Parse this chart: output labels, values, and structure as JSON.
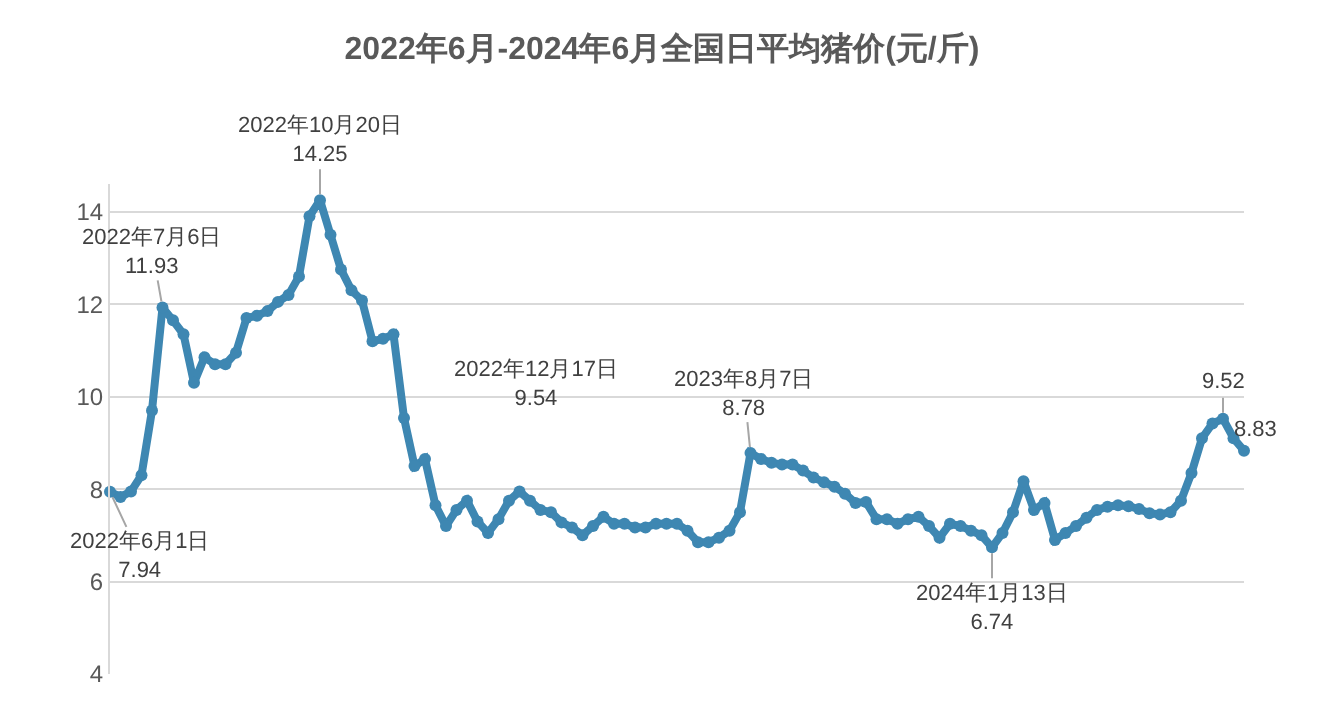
{
  "chart_data": {
    "type": "line",
    "title": "2022年6月-2024年6月全国日平均猪价(元/斤)",
    "categories": [
      null,
      null,
      null,
      null,
      null,
      null,
      null,
      null,
      null,
      null,
      null,
      null,
      null,
      null,
      null,
      null,
      null,
      null,
      null,
      null,
      null,
      null,
      null,
      null,
      null,
      null,
      null,
      null,
      null,
      null,
      null,
      null,
      null,
      null,
      null,
      null,
      null,
      null,
      null,
      null,
      null,
      null,
      null,
      null,
      null,
      null,
      null,
      null,
      null,
      null,
      null,
      null,
      null,
      null,
      null,
      null,
      null,
      null,
      null,
      null,
      null,
      null,
      null,
      null,
      null,
      null,
      null,
      null,
      null,
      null,
      null,
      null,
      null,
      null,
      null,
      null,
      null,
      null,
      null,
      null,
      null,
      null,
      null,
      null,
      null,
      null,
      null,
      null,
      null,
      null,
      null,
      null,
      null,
      null,
      null,
      null,
      null,
      null,
      null,
      null,
      null,
      null,
      null,
      null,
      null,
      null,
      null,
      null,
      null
    ],
    "series": [
      {
        "color": "#3e87b2",
        "values": [
          7.94,
          7.83,
          7.95,
          8.3,
          9.7,
          11.93,
          11.65,
          11.35,
          10.3,
          10.85,
          10.7,
          10.7,
          10.95,
          11.7,
          11.75,
          11.85,
          12.05,
          12.2,
          12.6,
          13.9,
          14.25,
          13.5,
          12.75,
          12.3,
          12.08,
          11.2,
          11.25,
          11.35,
          9.54,
          8.5,
          8.65,
          7.65,
          7.2,
          7.55,
          7.75,
          7.3,
          7.05,
          7.35,
          7.75,
          7.95,
          7.75,
          7.55,
          7.5,
          7.28,
          7.17,
          7.0,
          7.2,
          7.4,
          7.25,
          7.25,
          7.17,
          7.17,
          7.25,
          7.25,
          7.25,
          7.1,
          6.85,
          6.85,
          6.95,
          7.1,
          7.5,
          8.78,
          8.65,
          8.57,
          8.53,
          8.53,
          8.4,
          8.25,
          8.15,
          8.05,
          7.9,
          7.7,
          7.72,
          7.35,
          7.35,
          7.25,
          7.35,
          7.4,
          7.2,
          6.95,
          7.25,
          7.2,
          7.1,
          7.0,
          6.74,
          7.05,
          7.5,
          8.17,
          7.55,
          7.7,
          6.9,
          7.05,
          7.2,
          7.38,
          7.55,
          7.62,
          7.65,
          7.63,
          7.57,
          7.48,
          7.45,
          7.5,
          7.75,
          8.35,
          9.1,
          9.42,
          9.52,
          9.1,
          8.83
        ]
      }
    ],
    "marker": "circle",
    "ylim": [
      4,
      14.6
    ],
    "yticks": [
      4,
      6,
      8,
      10,
      12,
      14
    ],
    "tick_labels": "y",
    "grid": "y",
    "annotations": [
      {
        "text": "2022年6月1日\n7.94",
        "y": 7.94
      },
      {
        "text": "2022年7月6日\n11.93",
        "y": 11.93
      },
      {
        "text": "2022年10月20日\n14.25",
        "y": 14.25
      },
      "2022年12月17日\n9.54",
      {
        "text": "2023年8月7日\n8.78",
        "y": 8.78
      },
      {
        "text": "2024年1月13日\n6.74",
        "y": 6.74
      },
      {
        "text": "9.52",
        "y": 9.52
      },
      "8.83"
    ]
  }
}
